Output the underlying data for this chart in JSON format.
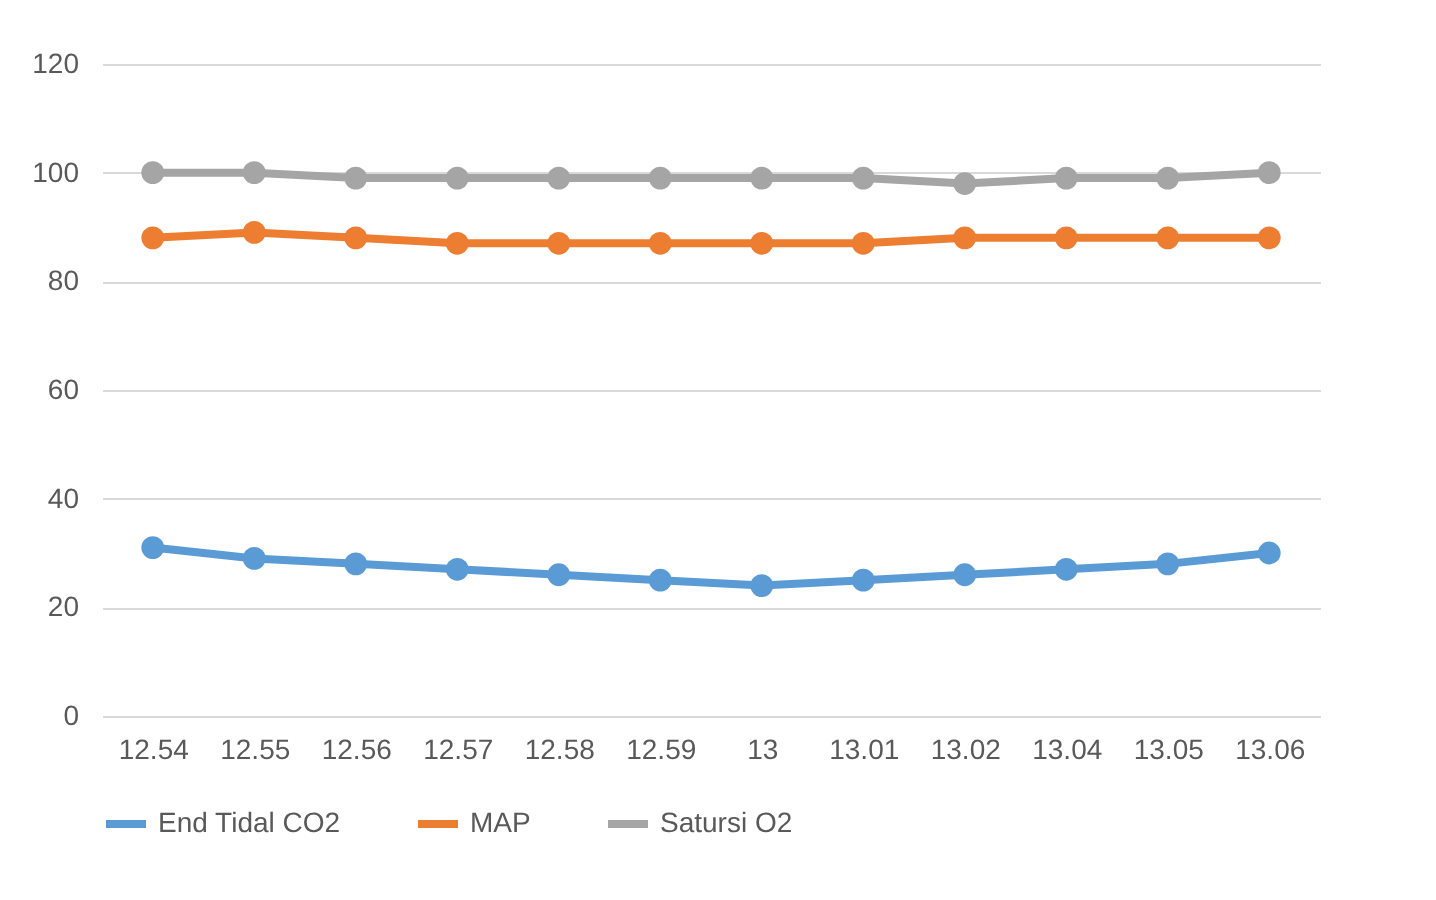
{
  "chart_data": {
    "type": "line",
    "categories": [
      "12.54",
      "12.55",
      "12.56",
      "12.57",
      "12.58",
      "12.59",
      "13",
      "13.01",
      "13.02",
      "13.04",
      "13.05",
      "13.06"
    ],
    "series": [
      {
        "name": "End Tidal CO2",
        "color": "#5b9bd5",
        "values": [
          31,
          29,
          28,
          27,
          26,
          25,
          24,
          25,
          26,
          27,
          28,
          30
        ]
      },
      {
        "name": "MAP",
        "color": "#ed7d31",
        "values": [
          88,
          89,
          88,
          87,
          87,
          87,
          87,
          87,
          88,
          88,
          88,
          88
        ]
      },
      {
        "name": "Satursi O2",
        "color": "#a5a5a5",
        "values": [
          100,
          100,
          99,
          99,
          99,
          99,
          99,
          99,
          98,
          99,
          99,
          100
        ]
      }
    ],
    "ylim": [
      0,
      120
    ],
    "yticks": [
      0,
      20,
      40,
      60,
      80,
      100,
      120
    ],
    "grid": "y",
    "legend": "bottom",
    "marker": "circle",
    "line_style": "solid"
  }
}
